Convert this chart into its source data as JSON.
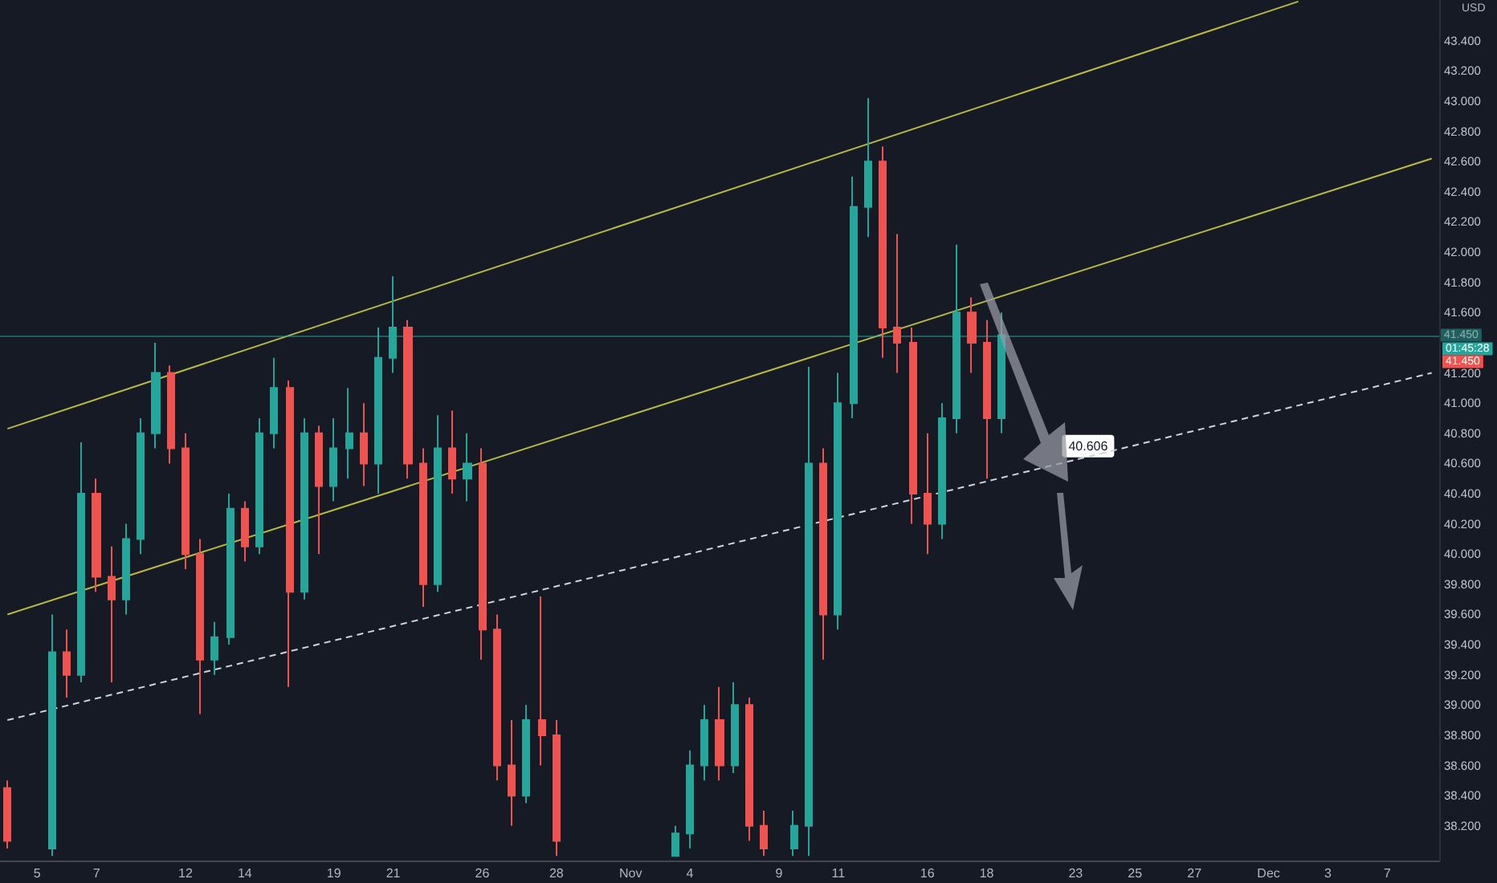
{
  "chart_data": {
    "type": "candlestick",
    "ylabel": "USD",
    "categories": [
      null,
      null,
      "5",
      null,
      null,
      null,
      "7",
      null,
      null,
      null,
      null,
      null,
      "12",
      null,
      null,
      null,
      "14",
      null,
      null,
      null,
      null,
      null,
      "19",
      null,
      null,
      null,
      "21",
      null,
      null,
      null,
      null,
      null,
      "26",
      null,
      null,
      null,
      null,
      "28",
      null,
      null,
      null,
      null,
      "Nov",
      null,
      null,
      null,
      "4",
      null,
      null,
      null,
      null,
      null,
      "9",
      null,
      null,
      null,
      "11",
      null,
      null,
      null,
      null,
      null,
      "16",
      null,
      null,
      null,
      "18",
      null,
      null,
      null,
      null,
      null,
      "23",
      null,
      null,
      null,
      "25",
      null,
      null,
      null,
      "27",
      null,
      null,
      null,
      null,
      "Dec",
      null,
      null,
      null,
      "3",
      null,
      null,
      null,
      "7",
      null,
      null,
      null
    ],
    "ohlc": [
      [
        38.45,
        38.5,
        38.05,
        38.1
      ],
      null,
      null,
      [
        38.05,
        39.6,
        38.0,
        39.35
      ],
      [
        39.35,
        39.5,
        39.05,
        39.2
      ],
      [
        39.2,
        40.74,
        39.15,
        40.4
      ],
      [
        40.4,
        40.5,
        39.75,
        39.85
      ],
      [
        39.85,
        40.05,
        39.15,
        39.7
      ],
      [
        39.7,
        40.2,
        39.6,
        40.1
      ],
      [
        40.1,
        40.9,
        40.0,
        40.8
      ],
      [
        40.8,
        41.4,
        40.7,
        41.2
      ],
      [
        41.2,
        41.25,
        40.6,
        40.7
      ],
      [
        40.7,
        40.8,
        39.9,
        40.0
      ],
      [
        40.0,
        40.1,
        38.94,
        39.3
      ],
      [
        39.3,
        39.55,
        39.2,
        39.45
      ],
      [
        39.45,
        40.4,
        39.4,
        40.3
      ],
      [
        40.3,
        40.35,
        39.95,
        40.05
      ],
      [
        40.05,
        40.9,
        40.0,
        40.8
      ],
      [
        40.8,
        41.3,
        40.7,
        41.1
      ],
      [
        41.1,
        41.15,
        39.12,
        39.75
      ],
      [
        39.75,
        40.9,
        39.7,
        40.8
      ],
      [
        40.8,
        40.85,
        40.0,
        40.45
      ],
      [
        40.45,
        40.9,
        40.35,
        40.7
      ],
      [
        40.7,
        41.1,
        40.5,
        40.8
      ],
      [
        40.8,
        41.0,
        40.45,
        40.6
      ],
      [
        40.6,
        41.5,
        40.4,
        41.3
      ],
      [
        41.3,
        41.84,
        41.2,
        41.5
      ],
      [
        41.5,
        41.55,
        40.5,
        40.6
      ],
      [
        40.6,
        40.7,
        39.65,
        39.8
      ],
      [
        39.8,
        40.92,
        39.75,
        40.7
      ],
      [
        40.7,
        40.95,
        40.4,
        40.5
      ],
      [
        40.5,
        40.8,
        40.35,
        40.6
      ],
      [
        40.6,
        40.7,
        39.3,
        39.5
      ],
      [
        39.5,
        39.6,
        38.5,
        38.6
      ],
      [
        38.6,
        38.9,
        38.2,
        38.4
      ],
      [
        38.4,
        39.0,
        38.35,
        38.9
      ],
      [
        38.9,
        39.72,
        38.6,
        38.8
      ],
      [
        38.8,
        38.9,
        38.0,
        38.1
      ],
      null,
      null,
      null,
      null,
      null,
      null,
      null,
      [
        38.0,
        38.2,
        38.0,
        38.15
      ],
      [
        38.15,
        38.7,
        38.05,
        38.6
      ],
      [
        38.6,
        39.0,
        38.5,
        38.9
      ],
      [
        38.9,
        39.12,
        38.5,
        38.6
      ],
      [
        38.6,
        39.15,
        38.55,
        39.0
      ],
      [
        39.0,
        39.05,
        38.1,
        38.2
      ],
      [
        38.2,
        38.3,
        38.0,
        38.05
      ],
      null,
      [
        38.05,
        38.3,
        38.0,
        38.2
      ],
      [
        38.2,
        41.24,
        38.0,
        40.6
      ],
      [
        40.6,
        40.7,
        39.3,
        39.6
      ],
      [
        39.6,
        41.2,
        39.5,
        41.0
      ],
      [
        41.0,
        42.5,
        40.9,
        42.3
      ],
      [
        42.3,
        43.02,
        42.1,
        42.6
      ],
      [
        42.6,
        42.7,
        41.3,
        41.5
      ],
      [
        41.5,
        42.12,
        41.2,
        41.4
      ],
      [
        41.4,
        41.5,
        40.2,
        40.4
      ],
      [
        40.4,
        40.8,
        40.0,
        40.2
      ],
      [
        40.2,
        41.0,
        40.1,
        40.9
      ],
      [
        40.9,
        42.05,
        40.8,
        41.6
      ],
      [
        41.6,
        41.7,
        41.2,
        41.4
      ],
      [
        41.4,
        41.55,
        40.5,
        40.9
      ],
      [
        40.9,
        41.6,
        40.8,
        41.45
      ],
      null,
      null,
      null,
      null,
      null,
      null,
      null,
      null,
      null,
      null,
      null,
      null,
      null,
      null,
      null,
      null,
      null,
      null,
      null,
      null,
      null,
      null,
      null,
      null,
      null,
      null,
      null,
      null,
      null
    ],
    "colors": [
      "#ef5350",
      null,
      null,
      "#26a69a",
      "#ef5350",
      "#26a69a",
      "#ef5350",
      "#ef5350",
      "#26a69a",
      "#26a69a",
      "#26a69a",
      "#ef5350",
      "#ef5350",
      "#ef5350",
      "#26a69a",
      "#26a69a",
      "#ef5350",
      "#26a69a",
      "#26a69a",
      "#ef5350",
      "#26a69a",
      "#ef5350",
      "#26a69a",
      "#26a69a",
      "#ef5350",
      "#26a69a",
      "#26a69a",
      "#ef5350",
      "#ef5350",
      "#26a69a",
      "#ef5350",
      "#26a69a",
      "#ef5350",
      "#ef5350",
      "#ef5350",
      "#26a69a",
      "#ef5350",
      "#ef5350",
      null,
      null,
      null,
      null,
      null,
      null,
      null,
      "#26a69a",
      "#26a69a",
      "#26a69a",
      "#ef5350",
      "#26a69a",
      "#ef5350",
      "#ef5350",
      null,
      "#26a69a",
      "#26a69a",
      "#ef5350",
      "#26a69a",
      "#26a69a",
      "#26a69a",
      "#ef5350",
      "#ef5350",
      "#ef5350",
      "#ef5350",
      "#26a69a",
      "#26a69a",
      "#ef5350",
      "#ef5350",
      "#26a69a",
      null,
      null,
      null,
      null,
      null,
      null,
      null,
      null,
      null,
      null,
      null,
      null,
      null,
      null,
      null,
      null,
      null,
      null,
      null,
      null,
      null,
      null,
      null,
      null,
      null,
      null,
      null,
      null,
      null
    ],
    "series": [
      {
        "type": "line",
        "color": "#b9bb3c",
        "values": [
          40.83,
          null,
          null,
          null,
          null,
          null,
          null,
          null,
          null,
          null,
          null,
          null,
          null,
          null,
          null,
          null,
          null,
          null,
          null,
          null,
          null,
          null,
          null,
          null,
          null,
          null,
          null,
          null,
          null,
          null,
          null,
          null,
          null,
          null,
          null,
          null,
          null,
          null,
          null,
          null,
          null,
          null,
          null,
          null,
          null,
          null,
          null,
          null,
          null,
          null,
          null,
          null,
          null,
          null,
          null,
          null,
          null,
          null,
          null,
          null,
          null,
          null,
          null,
          null,
          null,
          null,
          null,
          null,
          null,
          null,
          null,
          null,
          null,
          null,
          null,
          null,
          null,
          null,
          null,
          null,
          null,
          null,
          null,
          null,
          null,
          null,
          null,
          43.66,
          null,
          null,
          null,
          null,
          null,
          null,
          null,
          null,
          null
        ]
      },
      {
        "type": "line",
        "color": "#b9bb3c",
        "values": [
          39.6,
          null,
          null,
          null,
          null,
          null,
          null,
          null,
          null,
          null,
          null,
          null,
          null,
          null,
          null,
          null,
          null,
          null,
          null,
          null,
          null,
          null,
          null,
          null,
          null,
          null,
          null,
          null,
          null,
          null,
          null,
          null,
          null,
          null,
          null,
          null,
          null,
          null,
          null,
          null,
          null,
          null,
          null,
          null,
          null,
          null,
          null,
          null,
          null,
          null,
          null,
          null,
          null,
          null,
          null,
          null,
          null,
          null,
          null,
          null,
          null,
          null,
          null,
          null,
          null,
          null,
          null,
          null,
          null,
          null,
          null,
          null,
          null,
          null,
          null,
          null,
          null,
          null,
          null,
          null,
          null,
          null,
          null,
          null,
          null,
          null,
          null,
          null,
          null,
          null,
          null,
          null,
          null,
          null,
          null,
          null,
          42.62
        ]
      },
      {
        "type": "line",
        "color": "#d1d4dc",
        "line_style": "dashed",
        "values": [
          38.9,
          null,
          null,
          null,
          null,
          null,
          null,
          null,
          null,
          null,
          null,
          null,
          null,
          null,
          null,
          null,
          null,
          null,
          null,
          null,
          null,
          null,
          null,
          null,
          null,
          null,
          null,
          null,
          null,
          null,
          null,
          null,
          null,
          null,
          null,
          null,
          null,
          null,
          null,
          null,
          null,
          null,
          null,
          null,
          null,
          null,
          null,
          null,
          null,
          null,
          null,
          null,
          null,
          null,
          null,
          null,
          null,
          null,
          null,
          null,
          null,
          null,
          null,
          null,
          null,
          null,
          null,
          null,
          null,
          null,
          null,
          null,
          null,
          null,
          null,
          null,
          null,
          null,
          null,
          null,
          null,
          null,
          null,
          null,
          null,
          null,
          null,
          null,
          null,
          null,
          null,
          null,
          null,
          null,
          null,
          null,
          41.2
        ]
      }
    ],
    "ylim": [
      37.97,
      43.67
    ],
    "yticks": [
      {
        "value": 38.2,
        "label": "38.200"
      },
      {
        "value": 38.4,
        "label": "38.400"
      },
      {
        "value": 38.6,
        "label": "38.600"
      },
      {
        "value": 38.8,
        "label": "38.800"
      },
      {
        "value": 39.0,
        "label": "39.000"
      },
      {
        "value": 39.2,
        "label": "39.200"
      },
      {
        "value": 39.4,
        "label": "39.400"
      },
      {
        "value": 39.6,
        "label": "39.600"
      },
      {
        "value": 39.8,
        "label": "39.800"
      },
      {
        "value": 40.0,
        "label": "40.000"
      },
      {
        "value": 40.2,
        "label": "40.200"
      },
      {
        "value": 40.4,
        "label": "40.400"
      },
      {
        "value": 40.6,
        "label": "40.600"
      },
      {
        "value": 40.8,
        "label": "40.800"
      },
      {
        "value": 41.0,
        "label": "41.000"
      },
      {
        "value": 41.2,
        "label": "41.200"
      },
      {
        "value": 41.6,
        "label": "41.600"
      },
      {
        "value": 41.8,
        "label": "41.800"
      },
      {
        "value": 42.0,
        "label": "42.000"
      },
      {
        "value": 42.2,
        "label": "42.200"
      },
      {
        "value": 42.4,
        "label": "42.400"
      },
      {
        "value": 42.6,
        "label": "42.600"
      },
      {
        "value": 42.8,
        "label": "42.800"
      },
      {
        "value": 43.0,
        "label": "43.000"
      },
      {
        "value": 43.2,
        "label": "43.200"
      },
      {
        "value": 43.4,
        "label": "43.400"
      }
    ],
    "ref_lines": [
      {
        "axis": "y",
        "value": 41.45,
        "label": "41.450",
        "color": "#26a69a"
      }
    ],
    "annotations": [
      "40.606",
      "01:45:28",
      "41.450"
    ],
    "marker": "none",
    "grid": false
  }
}
